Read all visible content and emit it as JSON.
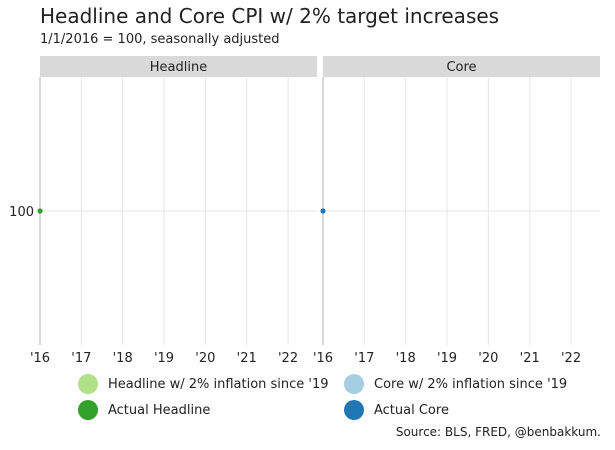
{
  "chart_data": {
    "type": "line",
    "title": "Headline and Core CPI w/ 2% target increases",
    "subtitle": "1/1/2016 = 100, seasonally adjusted",
    "caption": "Source: BLS, FRED, @benbakkum.",
    "x_ticks": [
      "'16",
      "'17",
      "'18",
      "'19",
      "'20",
      "'21",
      "'22"
    ],
    "xlim": [
      2016,
      2022.7
    ],
    "y_ticks": [
      100
    ],
    "ylim": [
      99.6,
      100.4
    ],
    "grid": true,
    "legend_position": "bottom",
    "panels": [
      {
        "label": "Headline",
        "series": [
          {
            "name": "Headline w/ 2% inflation since '19",
            "color": "#b2df8a",
            "points": []
          },
          {
            "name": "Actual Headline",
            "color": "#33a02c",
            "points": [
              [
                2016,
                100
              ]
            ]
          }
        ]
      },
      {
        "label": "Core",
        "series": [
          {
            "name": "Core w/ 2% inflation since '19",
            "color": "#a6cee3",
            "points": []
          },
          {
            "name": "Actual Core",
            "color": "#1f78b4",
            "points": [
              [
                2016,
                100
              ]
            ]
          }
        ]
      }
    ],
    "legend": [
      {
        "label": "Headline w/ 2% inflation since '19",
        "color": "#b2df8a"
      },
      {
        "label": "Core w/ 2% inflation since '19",
        "color": "#a6cee3"
      },
      {
        "label": "Actual Headline",
        "color": "#33a02c"
      },
      {
        "label": "Actual Core",
        "color": "#1f78b4"
      }
    ]
  }
}
